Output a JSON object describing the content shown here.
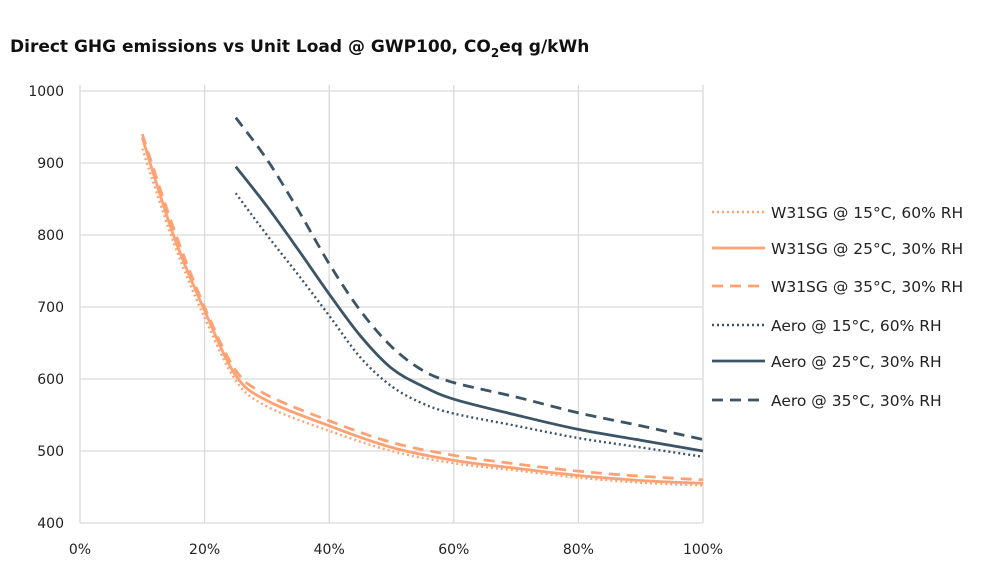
{
  "chart_data": {
    "type": "line",
    "title": {
      "main": "Direct GHG emissions vs Unit Load @ GWP100, CO",
      "sub": "2",
      "tail": "eq g/kWh"
    },
    "xlabel": "",
    "ylabel": "",
    "xlim": [
      0,
      100
    ],
    "ylim": [
      400,
      1000
    ],
    "x_ticks": [
      "0%",
      "20%",
      "40%",
      "60%",
      "80%",
      "100%"
    ],
    "x_tick_values": [
      0,
      20,
      40,
      60,
      80,
      100
    ],
    "y_ticks": [
      "400",
      "500",
      "600",
      "700",
      "800",
      "900",
      "1000"
    ],
    "y_tick_values": [
      400,
      500,
      600,
      700,
      800,
      900,
      1000
    ],
    "grid": true,
    "legend_placement": "right",
    "colors": {
      "w31sg": "#FFA273",
      "aero": "#3B5466",
      "grid": "#D9D9D9"
    },
    "series": [
      {
        "name": "W31SG @ 15°C, 60% RH",
        "color": "#FFA273",
        "style": "dotted",
        "x": [
          10,
          15,
          20,
          25,
          30,
          40,
          50,
          60,
          70,
          80,
          90,
          100
        ],
        "y": [
          920,
          790,
          685,
          598,
          562,
          528,
          500,
          483,
          473,
          463,
          456,
          452
        ]
      },
      {
        "name": "W31SG @ 25°C, 30% RH",
        "color": "#FFA273",
        "style": "solid",
        "x": [
          10,
          15,
          20,
          25,
          30,
          40,
          50,
          60,
          70,
          80,
          90,
          100
        ],
        "y": [
          935,
          800,
          695,
          605,
          570,
          535,
          505,
          487,
          476,
          466,
          459,
          455
        ]
      },
      {
        "name": "W31SG @ 35°C, 30% RH",
        "color": "#FFA273",
        "style": "dashed",
        "x": [
          10,
          15,
          20,
          25,
          30,
          40,
          50,
          60,
          70,
          80,
          90,
          100
        ],
        "y": [
          940,
          810,
          700,
          612,
          578,
          542,
          512,
          494,
          482,
          472,
          465,
          460
        ]
      },
      {
        "name": "Aero @ 15°C, 60% RH",
        "color": "#3B5466",
        "style": "dotted",
        "x": [
          25,
          30,
          35,
          40,
          45,
          50,
          55,
          60,
          70,
          80,
          90,
          100
        ],
        "y": [
          858,
          800,
          745,
          688,
          630,
          590,
          566,
          552,
          535,
          518,
          505,
          492
        ]
      },
      {
        "name": "Aero @ 25°C, 30% RH",
        "color": "#3B5466",
        "style": "solid",
        "x": [
          25,
          30,
          35,
          40,
          45,
          50,
          55,
          60,
          70,
          80,
          90,
          100
        ],
        "y": [
          895,
          840,
          780,
          718,
          660,
          615,
          590,
          572,
          550,
          530,
          515,
          500
        ]
      },
      {
        "name": "Aero @ 35°C, 30% RH",
        "color": "#3B5466",
        "style": "dashed",
        "x": [
          25,
          30,
          35,
          40,
          45,
          50,
          55,
          60,
          70,
          80,
          90,
          100
        ],
        "y": [
          963,
          905,
          835,
          760,
          695,
          645,
          612,
          595,
          575,
          553,
          535,
          516
        ]
      }
    ]
  }
}
